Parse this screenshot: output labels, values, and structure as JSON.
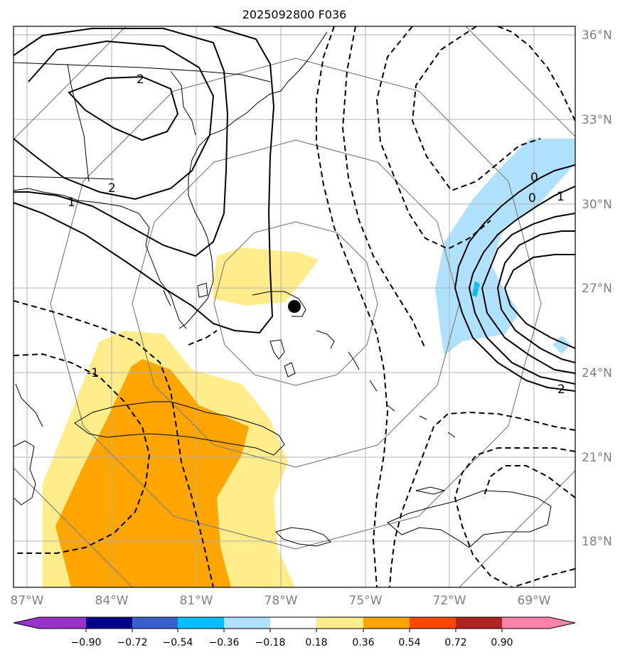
{
  "title": "2025092800 F036",
  "lat_labels": [
    "36°N",
    "33°N",
    "30°N",
    "27°N",
    "24°N",
    "21°N",
    "18°N"
  ],
  "lon_labels": [
    "87°W",
    "84°W",
    "81°W",
    "78°W",
    "75°W",
    "72°W",
    "69°W"
  ],
  "colorbar": {
    "tick_labels": [
      "−0.90",
      "−0.72",
      "−0.54",
      "−0.36",
      "−0.18",
      "0.18",
      "0.36",
      "0.54",
      "0.72",
      "0.90"
    ],
    "colors": [
      "#9932cc",
      "#00008b",
      "#3a5fcd",
      "#00bfff",
      "#b0e2ff",
      "#ffffff",
      "#ffec8b",
      "#ffa500",
      "#ff4500",
      "#b22222",
      "#ff82ab"
    ]
  },
  "contour_labels": {
    "nw_high_a": "2",
    "nw_high_b": "2",
    "nw_one": "1",
    "sw_neg": "-1",
    "east_zero_a": "0",
    "east_zero_b": "0",
    "east_one": "1",
    "east_two": "2"
  },
  "colors": {
    "shading_light_yellow": "#ffec8b",
    "shading_orange": "#ffa500",
    "shading_light_blue": "#b0e2ff",
    "shading_cyan": "#00bfff",
    "grid": "#b0b0b0",
    "range_rings": "#808080"
  },
  "storm_marker": "filled-circle"
}
